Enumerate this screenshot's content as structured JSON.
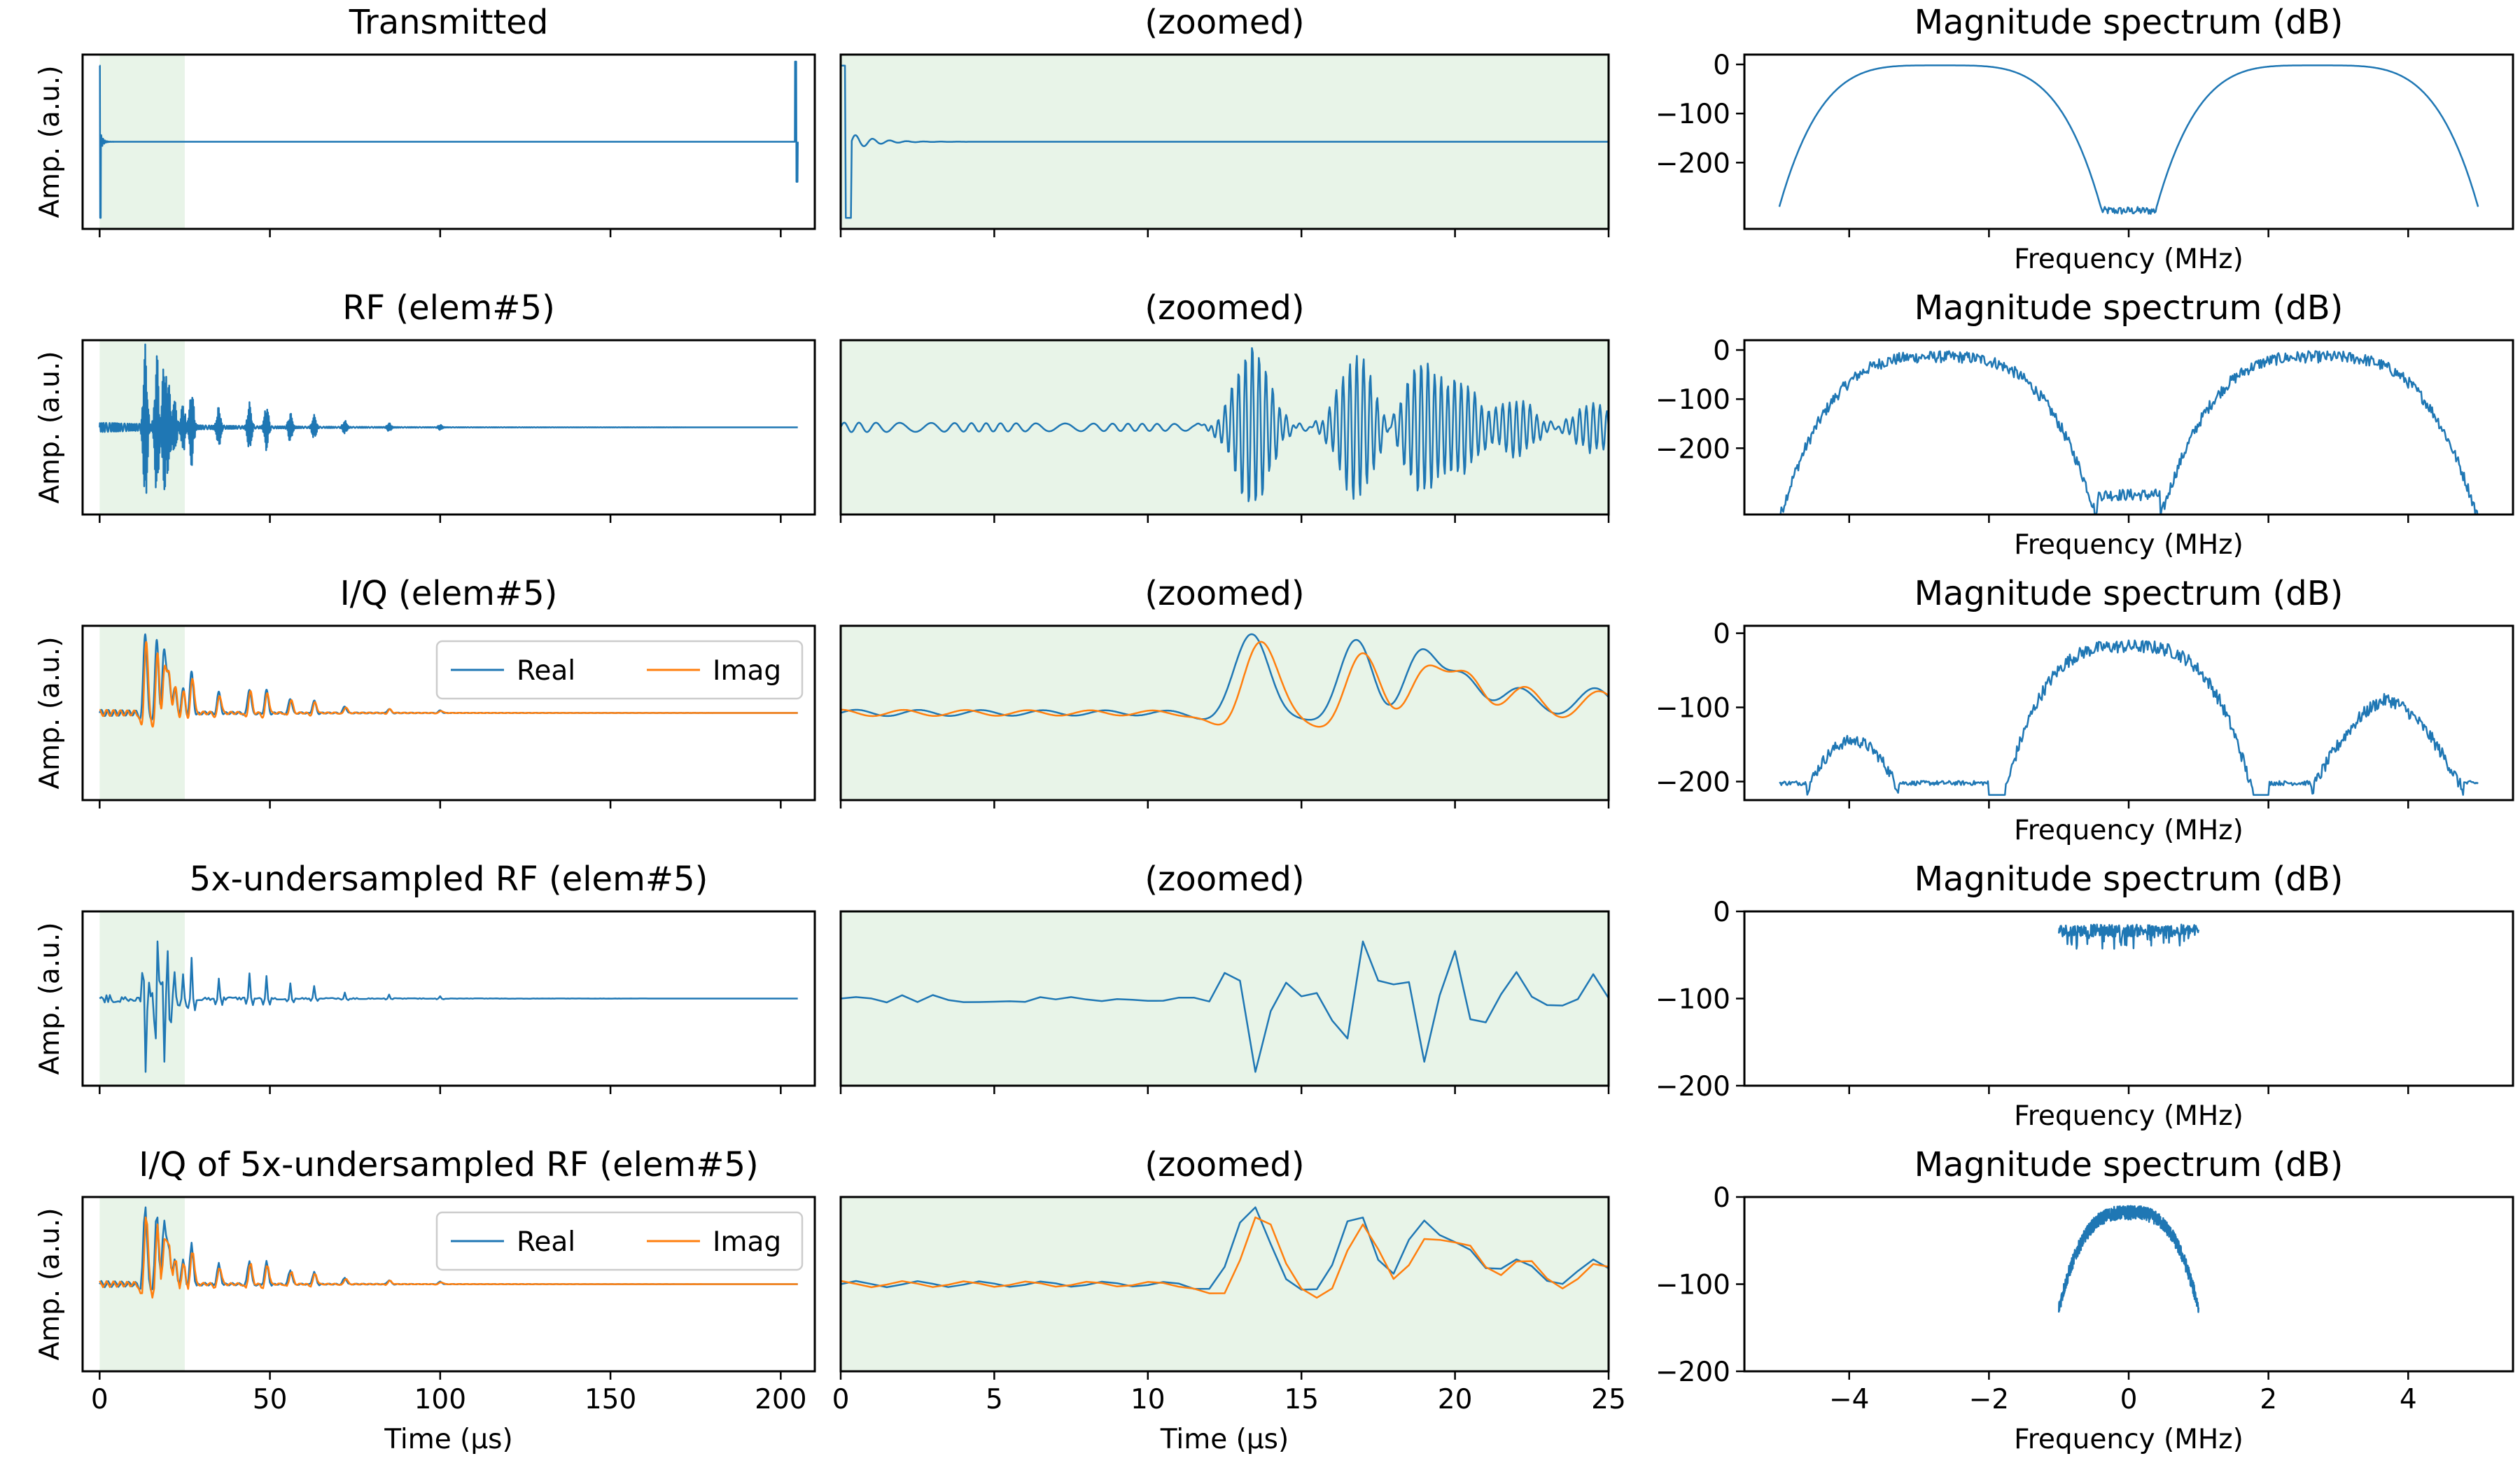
{
  "chart_data": {
    "type": "line",
    "layout": "5 rows x 3 columns",
    "colors": {
      "real": "#1f77b4",
      "imag": "#ff7f0e",
      "highlight": "#e8f4e8"
    },
    "x_ticks_time": [
      0,
      50,
      100,
      150,
      200
    ],
    "x_ticks_zoom": [
      0,
      5,
      10,
      15,
      20,
      25
    ],
    "x_ticks_freq": [
      "−4",
      "−2",
      "0",
      "2",
      "4"
    ],
    "x_ticks_freq_values": [
      -4,
      -2,
      0,
      2,
      4
    ],
    "xlabel_time": "Time (µs)",
    "xlabel_freq": "Frequency (MHz)",
    "ylabel_amp": "Amp. (a.u.)",
    "zoom_title": "(zoomed)",
    "spectrum_title": "Magnitude spectrum (dB)",
    "legend": {
      "real": "Real",
      "imag": "Imag"
    },
    "rows": [
      {
        "title": "Transmitted",
        "full_xlim": [
          -5,
          210
        ],
        "zoom_xlim": [
          0,
          25
        ],
        "highlight": [
          0,
          25
        ],
        "iq": false,
        "waveform": "pulse",
        "spectrum": {
          "xlim": [
            -5.5,
            5.5
          ],
          "ylim": [
            -335,
            20
          ],
          "yticks": [
            0,
            -100,
            -200
          ],
          "shape": "two_lobe_smooth",
          "floor": -315,
          "extent": 5.0,
          "show_xticks": false
        }
      },
      {
        "title": "RF (elem#5)",
        "full_xlim": [
          -5,
          210
        ],
        "zoom_xlim": [
          0,
          25
        ],
        "highlight": [
          0,
          25
        ],
        "iq": false,
        "waveform": "echo_dense",
        "spectrum": {
          "xlim": [
            -5.5,
            5.5
          ],
          "ylim": [
            -335,
            20
          ],
          "yticks": [
            0,
            -100,
            -200
          ],
          "shape": "two_lobe_noisy",
          "floor": -315,
          "extent": 5.0,
          "show_xticks": false
        }
      },
      {
        "title": "I/Q (elem#5)",
        "full_xlim": [
          -5,
          210
        ],
        "zoom_xlim": [
          0,
          25
        ],
        "highlight": [
          0,
          25
        ],
        "iq": true,
        "waveform": "echo_dense",
        "show_legend": true,
        "spectrum": {
          "xlim": [
            -5.5,
            5.5
          ],
          "ylim": [
            -225,
            10
          ],
          "yticks": [
            0,
            -100,
            -200
          ],
          "shape": "iq_shifted",
          "floor": -205,
          "extent": 5.0,
          "show_xticks": false
        }
      },
      {
        "title": "5x-undersampled RF (elem#5)",
        "full_xlim": [
          -5,
          210
        ],
        "zoom_xlim": [
          0,
          25
        ],
        "highlight": [
          0,
          25
        ],
        "iq": false,
        "waveform": "echo_sparse",
        "spectrum": {
          "xlim": [
            -5.5,
            5.5
          ],
          "ylim": [
            -200,
            0
          ],
          "yticks": [
            0,
            -100,
            -200
          ],
          "shape": "flat_band",
          "floor": -200,
          "extent": 1.0,
          "show_xticks": false
        }
      },
      {
        "title": "I/Q of 5x-undersampled RF (elem#5)",
        "full_xlim": [
          -5,
          210
        ],
        "zoom_xlim": [
          0,
          25
        ],
        "highlight": [
          0,
          25
        ],
        "iq": true,
        "waveform": "echo_sparse",
        "show_legend": true,
        "spectrum": {
          "xlim": [
            -5.5,
            5.5
          ],
          "ylim": [
            -200,
            0
          ],
          "yticks": [
            0,
            -100,
            -200
          ],
          "shape": "narrow_lobe",
          "floor": -110,
          "extent": 1.0,
          "show_xticks": true
        }
      }
    ]
  }
}
